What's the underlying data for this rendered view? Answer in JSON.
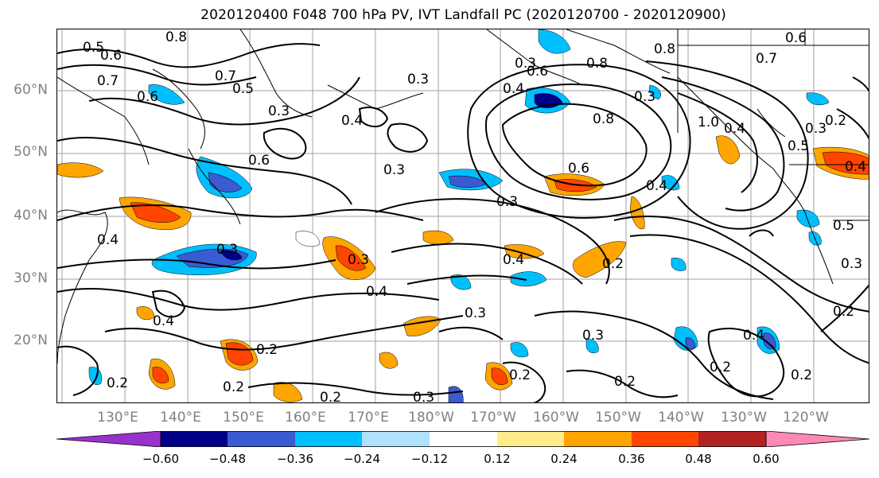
{
  "title": "2020120400 F048 700 hPa PV, IVT Landfall PC (2020120700 - 2020120900)",
  "lat_labels": [
    "60°N",
    "50°N",
    "40°N",
    "30°N",
    "20°N"
  ],
  "lon_labels": [
    "130°E",
    "140°E",
    "150°E",
    "160°E",
    "170°E",
    "180°W",
    "170°W",
    "160°W",
    "150°W",
    "140°W",
    "130°W",
    "120°W"
  ],
  "colorbar": {
    "ticks": [
      "−0.60",
      "−0.48",
      "−0.36",
      "−0.24",
      "−0.12",
      "0.12",
      "0.24",
      "0.36",
      "0.48",
      "0.60"
    ],
    "colors": [
      "#9932cc",
      "#00008b",
      "#3a5bd1",
      "#00bfff",
      "#b0e2ff",
      "#ffffff",
      "#ffeb8a",
      "#ffa500",
      "#ff4500",
      "#b22222",
      "#ff89b5"
    ]
  },
  "contour_labels": [
    "0.5",
    "0.6",
    "0.7",
    "0.6",
    "0.8",
    "0.7",
    "0.5",
    "0.3",
    "0.4",
    "0.3",
    "0.6",
    "0.4",
    "0.8",
    "0.8",
    "0.6",
    "0.7",
    "0.8",
    "1.0",
    "0.4",
    "0.3",
    "0.5",
    "0.2",
    "0.4",
    "0.6",
    "0.6",
    "0.3",
    "0.3",
    "0.4",
    "0.4",
    "0.3",
    "0.4",
    "0.5",
    "0.2",
    "0.3",
    "0.4",
    "0.3",
    "0.4",
    "0.3",
    "0.3",
    "0.2",
    "0.2",
    "0.2",
    "0.2",
    "0.2",
    "0.3",
    "0.2",
    "0.2",
    "0.4",
    "0.2",
    "0.2",
    "0.3",
    "0.3"
  ]
}
